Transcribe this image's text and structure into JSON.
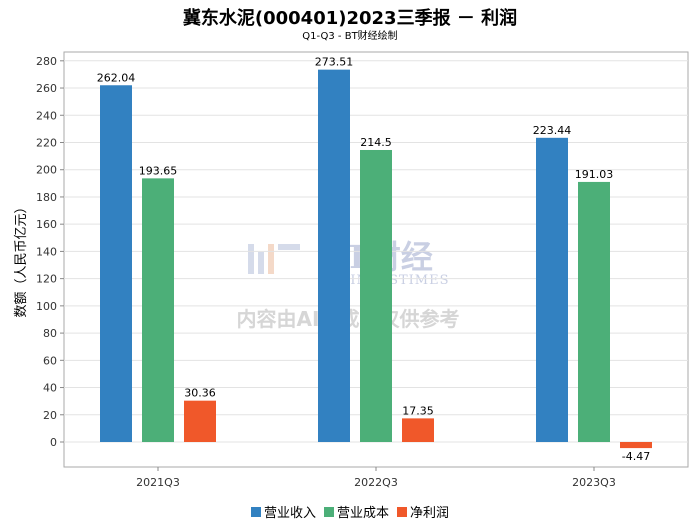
{
  "title": "冀东水泥(000401)2023三季报 － 利润",
  "subtitle": "Q1-Q3 - BT财经绘制",
  "watermark": {
    "brand": "BT财经",
    "sub": "BUSINESSTIMES",
    "notice": "内容由AI生成，仅供参考"
  },
  "chart_data": {
    "type": "bar",
    "title": "冀东水泥(000401)2023三季报 － 利润",
    "xlabel": "",
    "ylabel": "数额（人民币亿元）",
    "ylim": [
      -13,
      290
    ],
    "yticks": [
      0,
      20,
      40,
      60,
      80,
      100,
      120,
      140,
      160,
      180,
      200,
      220,
      240,
      260,
      280
    ],
    "categories": [
      "2021Q3",
      "2022Q3",
      "2023Q3"
    ],
    "series": [
      {
        "name": "营业收入",
        "color": "#3281c1",
        "values": [
          262.04,
          273.51,
          223.44
        ],
        "labels": [
          "262.04",
          "273.51",
          "223.44"
        ]
      },
      {
        "name": "营业成本",
        "color": "#4caf78",
        "values": [
          193.65,
          214.5,
          191.03
        ],
        "labels": [
          "193.65",
          "214.5",
          "191.03"
        ]
      },
      {
        "name": "净利润",
        "color": "#f0582a",
        "values": [
          30.36,
          17.35,
          -4.47
        ],
        "labels": [
          "30.36",
          "17.35",
          "-4.47"
        ]
      }
    ],
    "legend_position": "bottom"
  }
}
